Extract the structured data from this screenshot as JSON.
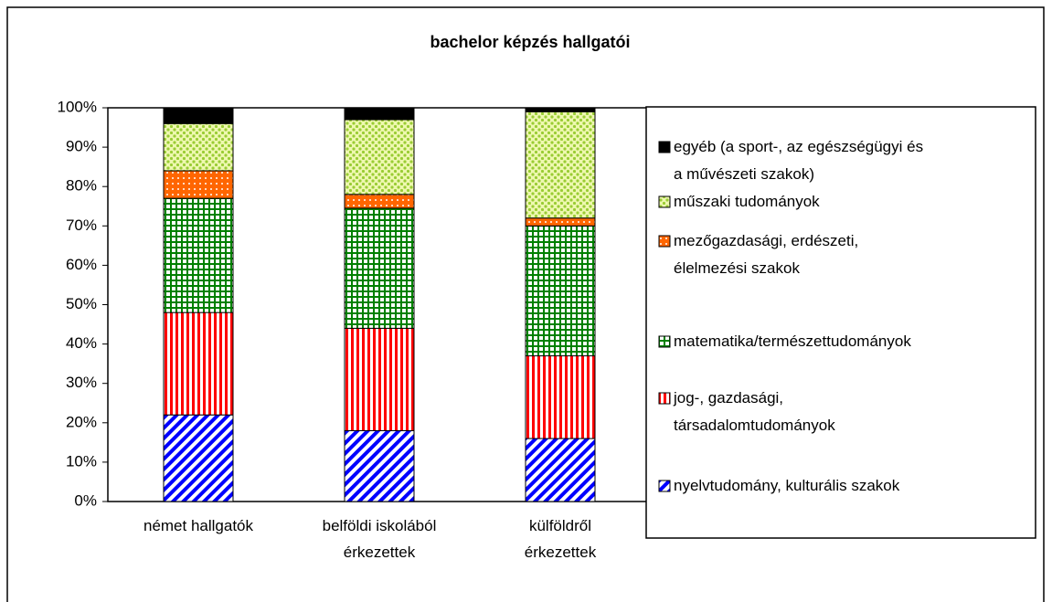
{
  "chart_data": {
    "type": "stacked_bar_percent",
    "title": "bachelor képzés hallgatói",
    "categories": [
      "német hallgatók",
      "belföldi iskolából\nérkezettek",
      "külföldről\nérkezettek"
    ],
    "series": [
      {
        "name": "nyelvtudomány, kulturális szakok",
        "color": "#0000ff",
        "pattern": "diagonal",
        "values": [
          22,
          18,
          16
        ]
      },
      {
        "name": "jog-, gazdasági,\ntársadalomtudományok",
        "color": "#ff0000",
        "pattern": "vertical",
        "values": [
          26,
          26,
          21
        ]
      },
      {
        "name": "matematika/természettudományok",
        "color": "#008000",
        "pattern": "grid",
        "values": [
          29,
          30.5,
          33
        ]
      },
      {
        "name": "mezőgazdasági, erdészeti,\nélelmezési szakok",
        "color": "#ff6600",
        "pattern": "dots-white",
        "values": [
          7,
          3.5,
          2
        ]
      },
      {
        "name": "műszaki tudományok",
        "color": "#99cc33",
        "pattern": "dots-light",
        "values": [
          12,
          19,
          27
        ]
      },
      {
        "name": "egyéb (a sport-, az egészségügyi és\na művészeti szakok)",
        "color": "#000000",
        "pattern": "solid",
        "values": [
          4,
          3,
          1
        ]
      }
    ],
    "ylim": [
      0,
      100
    ],
    "yticks": [
      {
        "value": 0,
        "label": "0%"
      },
      {
        "value": 10,
        "label": "10%"
      },
      {
        "value": 20,
        "label": "20%"
      },
      {
        "value": 30,
        "label": "30%"
      },
      {
        "value": 40,
        "label": "40%"
      },
      {
        "value": 50,
        "label": "50%"
      },
      {
        "value": 60,
        "label": "60%"
      },
      {
        "value": 70,
        "label": "70%"
      },
      {
        "value": 80,
        "label": "80%"
      },
      {
        "value": 90,
        "label": "90%"
      },
      {
        "value": 100,
        "label": "100%"
      }
    ],
    "legend": "right"
  }
}
